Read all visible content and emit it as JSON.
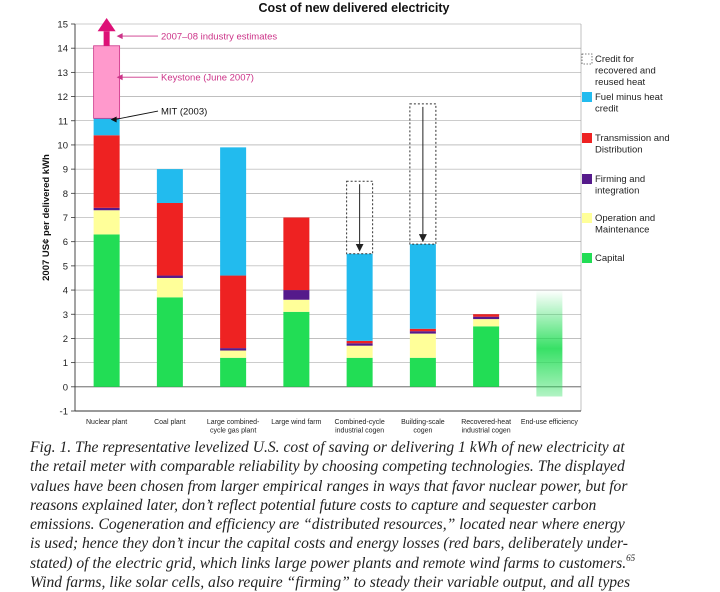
{
  "chart_data": {
    "type": "bar",
    "stacked": true,
    "title": "Cost of new delivered electricity",
    "ylabel": "2007 US¢ per delivered kWh",
    "ylim": [
      -1,
      15
    ],
    "yticks": [
      -1,
      0,
      1,
      2,
      3,
      4,
      5,
      6,
      7,
      8,
      9,
      10,
      11,
      12,
      13,
      14,
      15
    ],
    "grid": "horizontal",
    "legend_position": "right",
    "categories": [
      "Nuclear plant",
      "Coal plant",
      "Large combined-|cycle gas plant",
      "Large wind farm",
      "Combined-cycle|industrial cogen",
      "Building-scale|cogen",
      "Recovered-heat|industrial cogen",
      "End-use efficiency"
    ],
    "series": [
      {
        "name": "Capital",
        "color": "#22dd55",
        "values": [
          6.3,
          3.7,
          1.2,
          3.1,
          1.2,
          1.2,
          2.5,
          0
        ]
      },
      {
        "name": "Operation and Maintenance",
        "color": "#ffff99",
        "values": [
          1.0,
          0.8,
          0.3,
          0.5,
          0.5,
          1.0,
          0.3,
          0
        ]
      },
      {
        "name": "Firming and integration",
        "color": "#551a8b",
        "values": [
          0.1,
          0.1,
          0.1,
          0.4,
          0.1,
          0.1,
          0.1,
          0
        ]
      },
      {
        "name": "Transmission and Distribution",
        "color": "#ee2222",
        "values": [
          3.0,
          3.0,
          3.0,
          3.0,
          0.1,
          0.1,
          0.1,
          0
        ]
      },
      {
        "name": "Fuel minus heat credit",
        "color": "#22bbee",
        "values": [
          0.8,
          1.4,
          5.3,
          0,
          3.6,
          3.5,
          0,
          0
        ]
      }
    ],
    "credit_legend": "Credit for recovered and reused heat",
    "credit_boxes": [
      {
        "category": "Combined-cycle|industrial cogen",
        "from": 5.5,
        "to": 8.5
      },
      {
        "category": "Building-scale|cogen",
        "from": 5.9,
        "to": 11.7
      }
    ],
    "nuclear_estimate_range": {
      "from": 11.1,
      "to": 14.1,
      "color": "#ff99cc"
    },
    "efficiency_range": {
      "from": -0.4,
      "to": 4.0
    },
    "annotations": [
      {
        "text": "2007–08 industry estimates",
        "y": 14.5,
        "color": "#cc3388"
      },
      {
        "text": "Keystone (June 2007)",
        "y": 12.8,
        "color": "#cc3388"
      },
      {
        "text": "MIT (2003)",
        "y": 11.4,
        "color": "#111111"
      }
    ],
    "legend": [
      {
        "label": "Credit for|recovered and|reused heat",
        "swatch": "dashed"
      },
      {
        "label": "Fuel minus heat|credit",
        "color": "#22bbee"
      },
      {
        "label": "Transmission and|Distribution",
        "color": "#ee2222"
      },
      {
        "label": "Firming and|integration",
        "color": "#551a8b"
      },
      {
        "label": "Operation and|Maintenance",
        "color": "#ffff99"
      },
      {
        "label": "Capital",
        "color": "#22dd55"
      }
    ]
  },
  "caption": {
    "lines": [
      "Fig. 1. The representative levelized U.S. cost of saving or delivering 1 kWh of new electricity at",
      "the retail meter with comparable reliability by choosing competing technologies. The displayed",
      "values have been chosen from larger empirical ranges in ways that favor nuclear power, but for",
      "reasons explained later, don’t reflect potential future costs to capture and sequester carbon",
      "emissions. Cogeneration and efficiency are “distributed resources,” located near where energy",
      "is used; hence they don’t incur the capital costs and energy losses (red bars, deliberately under-",
      "stated) of the electric grid, which links large power plants and remote wind farms to customers.",
      "Wind farms, like solar cells, also require “firming” to steady their variable output, and all types"
    ],
    "footnote": "65"
  }
}
